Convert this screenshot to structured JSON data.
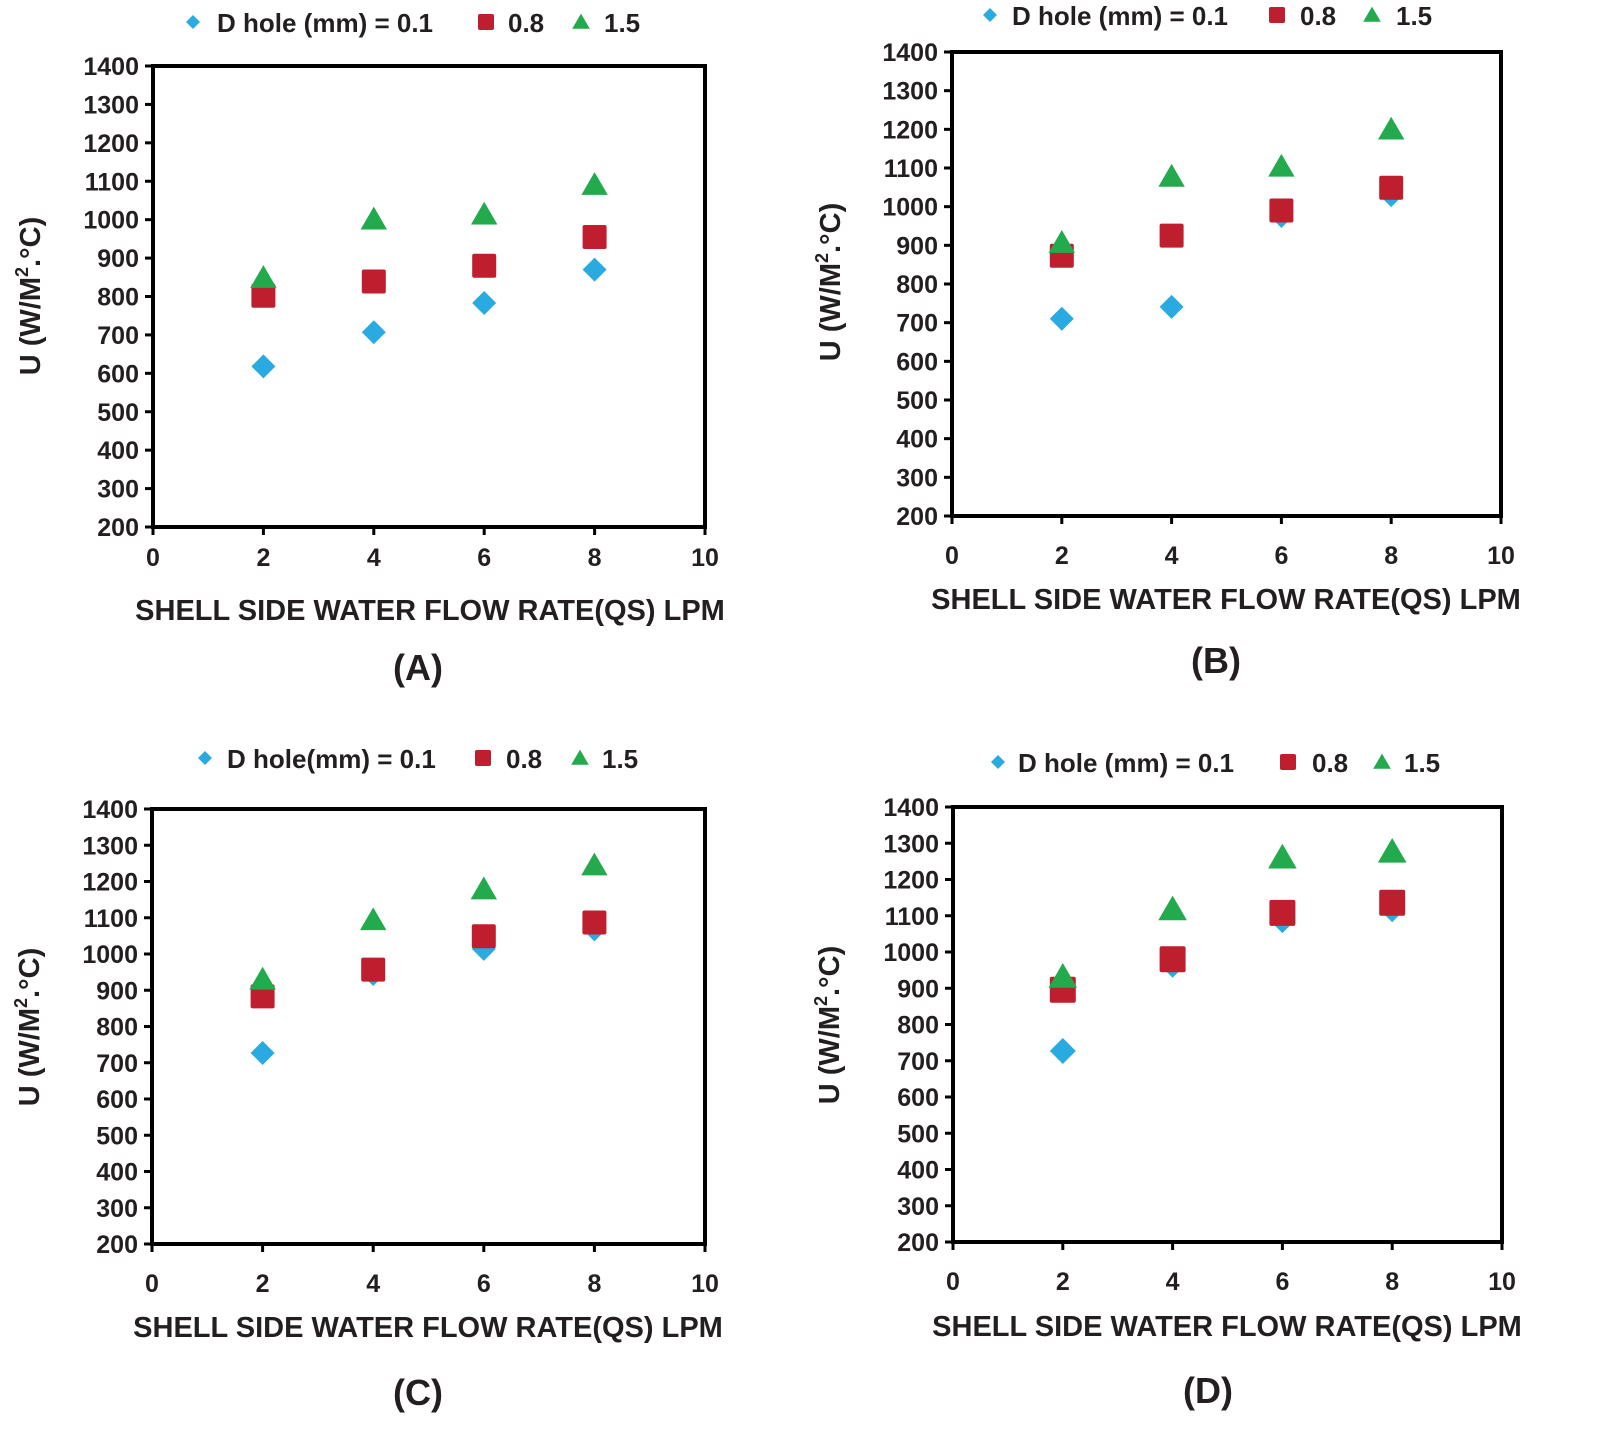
{
  "chart_data": [
    {
      "type": "scatter",
      "panel_label": "(A)",
      "xlabel": "SHELL SIDE WATER FLOW RATE(QS) LPM",
      "ylabel": "U (W/M2.°C)",
      "ylabel_main": "U (W/M",
      "ylabel_sup": "2",
      "ylabel_tail": ".°C)",
      "xlim": [
        0,
        10
      ],
      "ylim": [
        200,
        1400
      ],
      "xticks": [
        "0",
        "2",
        "4",
        "6",
        "8",
        "10"
      ],
      "yticks": [
        "1400",
        "1300",
        "1200",
        "1100",
        "1000",
        "900",
        "800",
        "700",
        "600",
        "500",
        "400",
        "300",
        "200"
      ],
      "legend_labels": [
        "D hole (mm) = 0.1",
        "0.8",
        "1.5"
      ],
      "series": [
        {
          "name": "0.1",
          "x": [
            2,
            4,
            6,
            8
          ],
          "y": [
            618,
            707,
            783,
            870
          ]
        },
        {
          "name": "0.8",
          "x": [
            2,
            4,
            6,
            8
          ],
          "y": [
            802,
            839,
            880,
            955
          ]
        },
        {
          "name": "1.5",
          "x": [
            2,
            4,
            6,
            8
          ],
          "y": [
            849,
            1001,
            1014,
            1091
          ]
        }
      ]
    },
    {
      "type": "scatter",
      "panel_label": "(B)",
      "xlabel": "SHELL SIDE WATER FLOW RATE(QS) LPM",
      "ylabel": "U (W/M2.°C)",
      "ylabel_main": "U (W/M",
      "ylabel_sup": "2",
      "ylabel_tail": ".°C)",
      "xlim": [
        0,
        10
      ],
      "ylim": [
        200,
        1400
      ],
      "xticks": [
        "0",
        "2",
        "4",
        "6",
        "8",
        "10"
      ],
      "yticks": [
        "1400",
        "1300",
        "1200",
        "1100",
        "1000",
        "900",
        "800",
        "700",
        "600",
        "500",
        "400",
        "300",
        "200"
      ],
      "legend_labels": [
        "D hole (mm) = 0.1",
        "0.8",
        "1.5"
      ],
      "series": [
        {
          "name": "0.1",
          "x": [
            2,
            4,
            6,
            8
          ],
          "y": [
            710,
            741,
            976,
            1030
          ]
        },
        {
          "name": "0.8",
          "x": [
            2,
            4,
            6,
            8
          ],
          "y": [
            873,
            925,
            990,
            1049
          ]
        },
        {
          "name": "1.5",
          "x": [
            2,
            4,
            6,
            8
          ],
          "y": [
            907,
            1078,
            1104,
            1200
          ]
        }
      ]
    },
    {
      "type": "scatter",
      "panel_label": "(C)",
      "xlabel": "SHELL SIDE WATER FLOW RATE(QS) LPM",
      "ylabel": "U (W/M2.°C)",
      "ylabel_main": "U (W/M",
      "ylabel_sup": "2",
      "ylabel_tail": ".°C)",
      "xlim": [
        0,
        10
      ],
      "ylim": [
        200,
        1400
      ],
      "xticks": [
        "0",
        "2",
        "4",
        "6",
        "8",
        "10"
      ],
      "yticks": [
        "1400",
        "1300",
        "1200",
        "1100",
        "1000",
        "900",
        "800",
        "700",
        "600",
        "500",
        "400",
        "300",
        "200"
      ],
      "legend_labels": [
        "D hole(mm) = 0.1",
        "0.8",
        "1.5"
      ],
      "series": [
        {
          "name": "0.1",
          "x": [
            2,
            4,
            6,
            8
          ],
          "y": [
            727,
            945,
            1014,
            1068
          ]
        },
        {
          "name": "0.8",
          "x": [
            2,
            4,
            6,
            8
          ],
          "y": [
            883,
            957,
            1049,
            1087
          ]
        },
        {
          "name": "1.5",
          "x": [
            2,
            4,
            6,
            8
          ],
          "y": [
            930,
            1094,
            1179,
            1245
          ]
        }
      ]
    },
    {
      "type": "scatter",
      "panel_label": "(D)",
      "xlabel": "SHELL SIDE WATER FLOW RATE(QS) LPM",
      "ylabel": "U (W/M2.°C)",
      "ylabel_main": "U (W/M",
      "ylabel_sup": "2",
      "ylabel_tail": ".°C)",
      "xlim": [
        0,
        10
      ],
      "ylim": [
        200,
        1400
      ],
      "xticks": [
        "0",
        "2",
        "4",
        "6",
        "8",
        "10"
      ],
      "yticks": [
        "1400",
        "1300",
        "1200",
        "1100",
        "1000",
        "900",
        "800",
        "700",
        "600",
        "500",
        "400",
        "300",
        "200"
      ],
      "legend_labels": [
        "D hole (mm) = 0.1",
        "0.8",
        "1.5"
      ],
      "series": [
        {
          "name": "0.1",
          "x": [
            2,
            4,
            6,
            8
          ],
          "y": [
            727,
            965,
            1088,
            1118
          ]
        },
        {
          "name": "0.8",
          "x": [
            2,
            4,
            6,
            8
          ],
          "y": [
            896,
            980,
            1108,
            1136
          ]
        },
        {
          "name": "1.5",
          "x": [
            2,
            4,
            6,
            8
          ],
          "y": [
            932,
            1118,
            1261,
            1277
          ]
        }
      ]
    }
  ],
  "style": {
    "series_colors": [
      "#29abe2",
      "#be1e2d",
      "#22aa4c"
    ],
    "series_shapes": [
      "diamond",
      "square",
      "triangle"
    ],
    "axis_color": "#000000",
    "text_color": "#231f20"
  }
}
